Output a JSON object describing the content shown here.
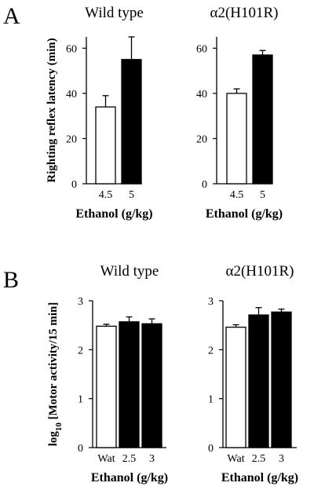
{
  "panels": [
    {
      "label": "A"
    },
    {
      "label": "B"
    }
  ],
  "chart_data": [
    {
      "type": "bar",
      "panel": "A",
      "title": "Wild type",
      "xlabel": "Ethanol (g/kg)",
      "ylabel": "Righting reflex latency (min)",
      "ylim": [
        0,
        65
      ],
      "yticks": [
        "0",
        "20",
        "40",
        "60"
      ],
      "categories": [
        "4.5",
        "5"
      ],
      "values": [
        34,
        55
      ],
      "errors": [
        5,
        10
      ],
      "fills": [
        "#ffffff",
        "#000000"
      ]
    },
    {
      "type": "bar",
      "panel": "A",
      "title": "α2(H101R)",
      "xlabel": "Ethanol (g/kg)",
      "ylabel": "",
      "ylim": [
        0,
        65
      ],
      "yticks": [
        "0",
        "20",
        "40",
        "60"
      ],
      "categories": [
        "4.5",
        "5"
      ],
      "values": [
        40,
        57
      ],
      "errors": [
        2,
        2
      ],
      "fills": [
        "#ffffff",
        "#000000"
      ]
    },
    {
      "type": "bar",
      "panel": "B",
      "title": "Wild type",
      "xlabel": "Ethanol (g/kg)",
      "ylabel": "log10 [Motor activity/15 min]",
      "ylim": [
        0,
        3
      ],
      "yticks": [
        "0",
        "1",
        "2",
        "3"
      ],
      "categories": [
        "Wat",
        "2.5",
        "3"
      ],
      "values": [
        2.48,
        2.57,
        2.53
      ],
      "errors": [
        0.04,
        0.1,
        0.1
      ],
      "fills": [
        "#ffffff",
        "#000000",
        "#000000"
      ]
    },
    {
      "type": "bar",
      "panel": "B",
      "title": "α2(H101R)",
      "xlabel": "Ethanol (g/kg)",
      "ylabel": "",
      "ylim": [
        0,
        3
      ],
      "yticks": [
        "0",
        "1",
        "2",
        "3"
      ],
      "categories": [
        "Wat",
        "2.5",
        "3"
      ],
      "values": [
        2.46,
        2.71,
        2.77
      ],
      "errors": [
        0.05,
        0.15,
        0.06
      ],
      "fills": [
        "#ffffff",
        "#000000",
        "#000000"
      ]
    }
  ]
}
